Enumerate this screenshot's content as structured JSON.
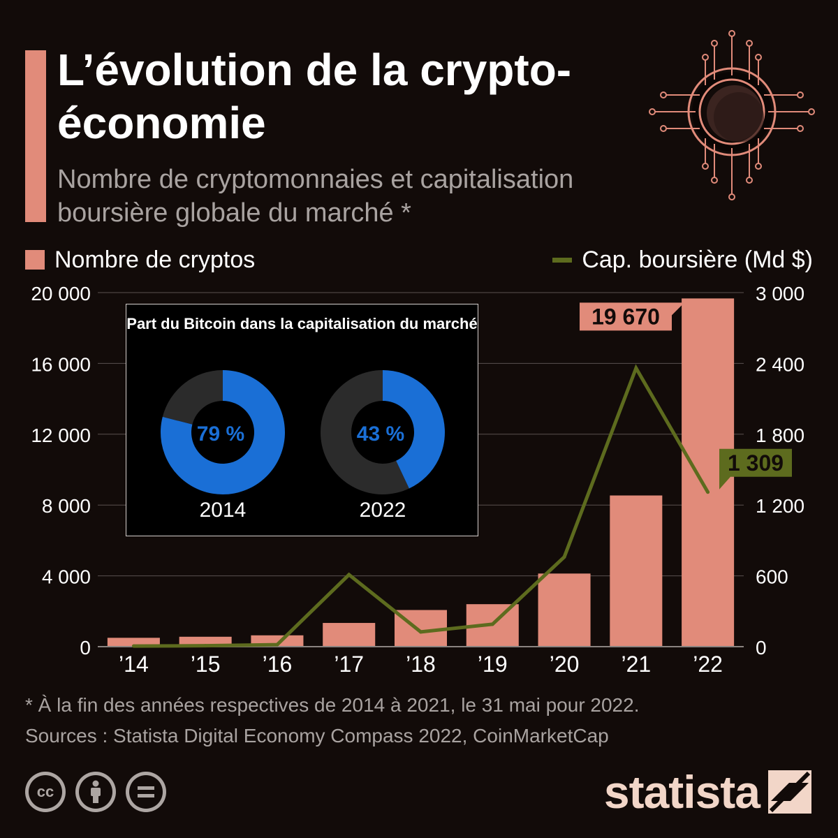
{
  "header": {
    "title": "L’évolution de la crypto-économie",
    "subtitle": "Nombre de cryptomonnaies et capitalisation boursière globale du marché *"
  },
  "legend": {
    "bars_label": "Nombre de cryptos",
    "line_label": "Cap. boursière (Md $)"
  },
  "chart_data": {
    "type": "bar+line",
    "categories": [
      "’14",
      "’15",
      "’16",
      "’17",
      "’18",
      "’19",
      "’20",
      "’21",
      "’22"
    ],
    "series": [
      {
        "name": "Nombre de cryptos",
        "type": "bar",
        "axis": "left",
        "values": [
          500,
          560,
          640,
          1340,
          2070,
          2400,
          4130,
          8540,
          19670
        ]
      },
      {
        "name": "Cap. boursière (Md $)",
        "type": "line",
        "axis": "right",
        "values": [
          5,
          8,
          17,
          610,
          125,
          190,
          760,
          2360,
          1309
        ]
      }
    ],
    "y_left": {
      "range": [
        0,
        20000
      ],
      "ticks": [
        0,
        4000,
        8000,
        12000,
        16000,
        20000
      ],
      "tick_labels": [
        "0",
        "4 000",
        "8 000",
        "12 000",
        "16 000",
        "20 000"
      ]
    },
    "y_right": {
      "range": [
        0,
        3000
      ],
      "ticks": [
        0,
        600,
        1200,
        1800,
        2400,
        3000
      ],
      "tick_labels": [
        "0",
        "600",
        "1 200",
        "1 800",
        "2 400",
        "3 000"
      ]
    },
    "annotations": [
      {
        "series": "Nombre de cryptos",
        "category": "’22",
        "label": "19 670"
      },
      {
        "series": "Cap. boursière (Md $)",
        "category": "’22",
        "label": "1 309"
      }
    ],
    "grid": true,
    "colors": {
      "bars": "#e18b7a",
      "line": "#5d6b1e",
      "grid": "#5a5250",
      "text": "#ffffff"
    }
  },
  "inset": {
    "title": "Part du Bitcoin dans la capitalisation du marché",
    "donuts": [
      {
        "year": "2014",
        "share": 79,
        "label": "79 %"
      },
      {
        "year": "2022",
        "share": 43,
        "label": "43 %"
      }
    ],
    "colors": {
      "share": "#1a6fd6",
      "rest": "#2b2b2b",
      "label": "#1a6fd6"
    }
  },
  "footer": {
    "note": "* À la fin des années respectives de 2014 à 2021, le 31 mai pour 2022.",
    "sources": "Sources : Statista Digital Economy Compass 2022, CoinMarketCap",
    "brand": "statista",
    "license_icons": [
      "cc-icon",
      "attribution-icon",
      "no-derivatives-icon"
    ]
  }
}
